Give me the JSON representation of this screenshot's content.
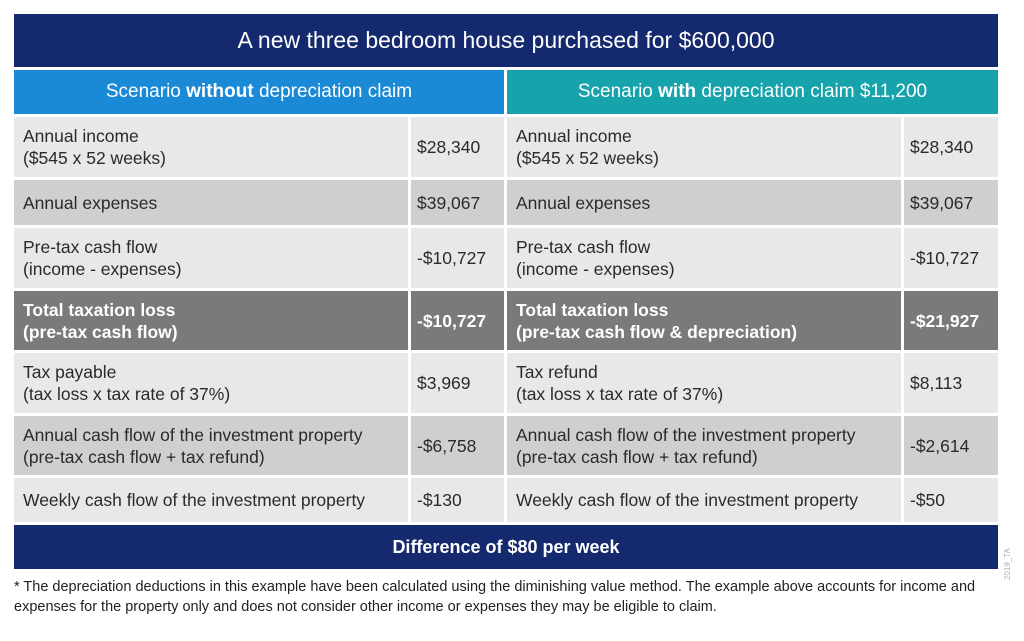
{
  "title": "A new three bedroom house purchased for $600,000",
  "scenario_left": {
    "pre": "Scenario ",
    "bold": "without",
    "post": " depreciation claim"
  },
  "scenario_right": {
    "pre": "Scenario ",
    "bold": "with",
    "post": " depreciation claim $11,200"
  },
  "left_rows": [
    {
      "line1": "Annual income",
      "line2": "($545 x 52 weeks)",
      "value": "$28,340"
    },
    {
      "line1": "Annual expenses",
      "line2": "",
      "value": "$39,067"
    },
    {
      "line1": "Pre-tax cash flow",
      "line2": "(income - expenses)",
      "value": "-$10,727"
    },
    {
      "line1": "Total taxation loss",
      "line2": "(pre-tax cash flow)",
      "value": "-$10,727"
    },
    {
      "line1": "Tax payable",
      "line2": "(tax loss x tax rate of 37%)",
      "value": "$3,969"
    },
    {
      "line1": "Annual cash flow of the investment property",
      "line2": "(pre-tax cash flow + tax refund)",
      "value": "-$6,758"
    },
    {
      "line1": "Weekly cash flow of the investment property",
      "line2": "",
      "value": "-$130"
    }
  ],
  "right_rows": [
    {
      "line1": "Annual income",
      "line2": "($545 x 52 weeks)",
      "value": "$28,340"
    },
    {
      "line1": "Annual expenses",
      "line2": "",
      "value": "$39,067"
    },
    {
      "line1": "Pre-tax cash flow",
      "line2": "(income - expenses)",
      "value": "-$10,727"
    },
    {
      "line1": "Total taxation loss",
      "line2": "(pre-tax cash flow & depreciation)",
      "value": "-$21,927"
    },
    {
      "line1": "Tax refund",
      "line2": "(tax loss x tax rate of 37%)",
      "value": "$8,113"
    },
    {
      "line1": "Annual cash flow of the investment property",
      "line2": "(pre-tax cash flow + tax refund)",
      "value": "-$2,614"
    },
    {
      "line1": "Weekly cash flow of the investment property",
      "line2": "",
      "value": "-$50"
    }
  ],
  "difference": "Difference of $80 per week",
  "footnote": "* The depreciation deductions in this example have been calculated using the diminishing value method. The example above accounts for income and expenses for the property only and does not consider other income or expenses they may be eligible to claim.",
  "watermark": "2019_TA",
  "colors": {
    "title_bar": "#152a6e",
    "scenario_left": "#1a8ad6",
    "scenario_right": "#16a3ab",
    "highlight_row": "#7a7a7a"
  }
}
